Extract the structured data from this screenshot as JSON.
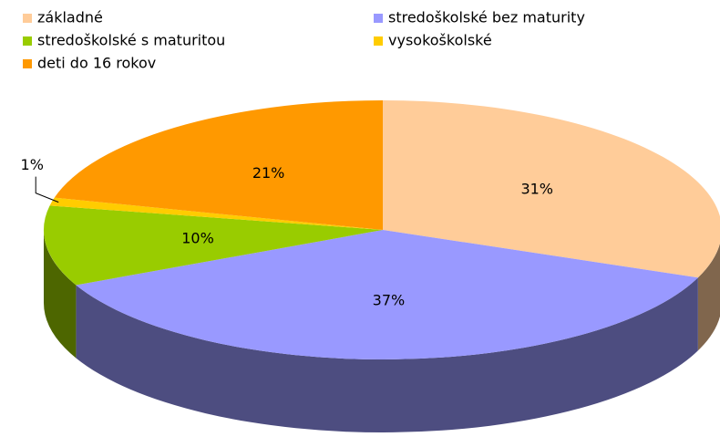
{
  "chart_data": {
    "type": "pie3d",
    "categories": [
      "základné",
      "stredoškolské bez maturity",
      "stredoškolské s maturitou",
      "vysokoškolské",
      "deti do 16 rokov"
    ],
    "values": [
      31,
      37,
      10,
      1,
      21
    ],
    "value_labels": [
      "31%",
      "37%",
      "10%",
      "1%",
      "21%"
    ],
    "colors": [
      "#ffcc99",
      "#9999ff",
      "#99cc00",
      "#ffcc00",
      "#ff9900"
    ],
    "legend": "top"
  }
}
